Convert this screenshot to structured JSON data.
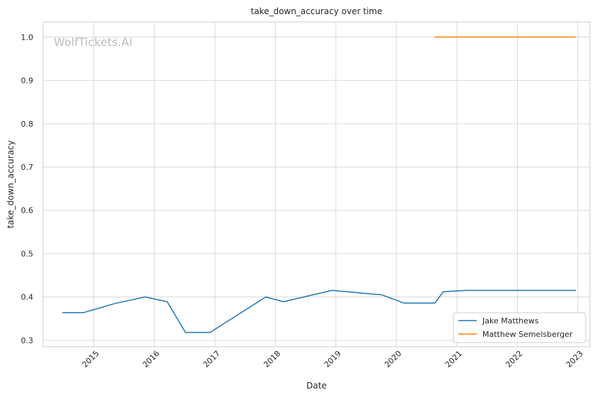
{
  "chart_data": {
    "type": "line",
    "title": "take_down_accuracy over time",
    "xlabel": "Date",
    "ylabel": "take_down_accuracy",
    "watermark": "WolfTickets.AI",
    "xlim": [
      "2014-03-01",
      "2023-03-15"
    ],
    "ylim": [
      0.285,
      1.035
    ],
    "x_ticks": [
      "2015",
      "2016",
      "2017",
      "2018",
      "2019",
      "2020",
      "2021",
      "2022",
      "2023"
    ],
    "y_ticks": [
      "0.3",
      "0.4",
      "0.5",
      "0.6",
      "0.7",
      "0.8",
      "0.9",
      "1.0"
    ],
    "grid": true,
    "legend_position": "lower right",
    "series": [
      {
        "name": "Jake Matthews",
        "color": "#1f77b4",
        "x": [
          "2014-06-28",
          "2014-11-01",
          "2015-05-09",
          "2015-11-07",
          "2016-03-19",
          "2016-07-07",
          "2016-12-03",
          "2017-11-04",
          "2018-02-18",
          "2018-12-08",
          "2019-10-05",
          "2020-02-15",
          "2020-08-22",
          "2020-10-10",
          "2021-02-27",
          "2022-12-17"
        ],
        "y": [
          0.364,
          0.364,
          0.385,
          0.4,
          0.389,
          0.318,
          0.318,
          0.4,
          0.389,
          0.415,
          0.405,
          0.386,
          0.386,
          0.412,
          0.415,
          0.415
        ]
      },
      {
        "name": "Matthew Semelsberger",
        "color": "#ff7f0e",
        "x": [
          "2020-08-22",
          "2022-12-17"
        ],
        "y": [
          1.0,
          1.0
        ]
      }
    ]
  }
}
